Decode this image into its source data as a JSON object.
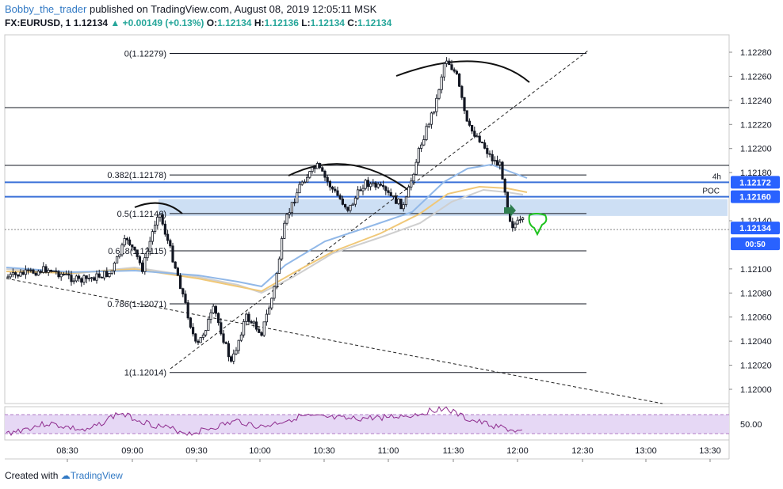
{
  "header": {
    "author": "Bobby_the_trader",
    "published_text": "published on TradingView.com, August 08, 2019 12:05:11 MSK",
    "symbol": "FX:EURUSD, 1",
    "last": "1.12134",
    "change": "+0.00149 (+0.13%)",
    "o_label": "O:",
    "o": "1.12134",
    "h_label": "H:",
    "h": "1.12136",
    "l_label": "L:",
    "l": "1.12134",
    "c_label": "C:",
    "c": "1.12134"
  },
  "footer": {
    "created_with": "Created with",
    "brand": "TradingView"
  },
  "colors": {
    "up": "#26a69a",
    "candle": "#131722",
    "fib_line": "#131722",
    "blue_line": "#3a70d8",
    "zone_fill": "#bcd4f0",
    "rsi_band": "#e6d8f5",
    "rsi_line": "#8e2c8e",
    "ma_blue": "#91b8e8",
    "ma_orange": "#f0c878",
    "ma_grey": "#cfcfcf",
    "price_badge": "#2962ff"
  },
  "chart_data": {
    "type": "candlestick",
    "ylim": [
      1.1199,
      1.1229
    ],
    "y_ticks": [
      "1.12280",
      "1.12260",
      "1.12240",
      "1.12220",
      "1.12200",
      "1.12180",
      "1.12140",
      "1.12100",
      "1.12080",
      "1.12060",
      "1.12040",
      "1.12020",
      "1.12000"
    ],
    "x_ticks": [
      "08:30",
      "09:00",
      "09:30",
      "10:00",
      "10:30",
      "11:00",
      "11:30",
      "12:00",
      "12:30",
      "13:00",
      "13:30"
    ],
    "price_labels": [
      {
        "text": "4h",
        "value": 1.12172,
        "badge": ""
      },
      {
        "text": "",
        "value": 1.12172,
        "badge": "1.12172"
      },
      {
        "text": "POC",
        "value": 1.1216,
        "badge": "1.12160"
      },
      {
        "text": "",
        "value": 1.12134,
        "badge": "1.12134"
      },
      {
        "text": "00:50",
        "value": 1.12124,
        "badge": ""
      }
    ],
    "fib_levels": [
      {
        "label": "0(1.12279)",
        "value": 1.12279
      },
      {
        "label": "0.382(1.12178)",
        "value": 1.12178
      },
      {
        "label": "0.5(1.12146)",
        "value": 1.12146
      },
      {
        "label": "0.618(1.12115)",
        "value": 1.12115
      },
      {
        "label": "0.786(1.12071)",
        "value": 1.12071
      },
      {
        "label": "1(1.12014)",
        "value": 1.12014
      }
    ],
    "horizontal_lines": [
      1.12234,
      1.12186
    ],
    "blue_lines": [
      1.12172,
      1.1216
    ],
    "zone": [
      1.12144,
      1.12158
    ],
    "rsi": {
      "label": "50.00",
      "upper": 70,
      "lower": 30,
      "last": 30
    }
  }
}
